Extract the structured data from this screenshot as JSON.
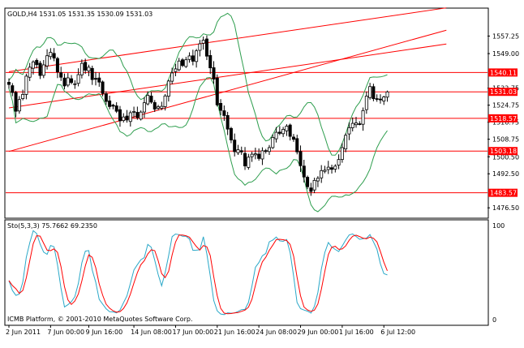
{
  "chart_data": [
    {
      "type": "candlestick",
      "title": "GOLD,H4  1531.05 1531.35 1530.09 1531.03",
      "symbol": "GOLD",
      "timeframe": "H4",
      "last_bar": {
        "open": 1531.05,
        "high": 1531.35,
        "low": 1530.09,
        "close": 1531.03
      },
      "ylim": [
        1472,
        1570
      ],
      "y_ticks": [
        1557.25,
        1549.0,
        1532.75,
        1524.75,
        1516.75,
        1508.75,
        1500.5,
        1492.5,
        1476.5
      ],
      "price_tags": [
        {
          "label": "1540.11",
          "value": 1540.11
        },
        {
          "label": "1531.03",
          "value": 1531.03
        },
        {
          "label": "1518.57",
          "value": 1518.57
        },
        {
          "label": "1503.18",
          "value": 1503.18
        },
        {
          "label": "1483.57",
          "value": 1483.57
        }
      ],
      "horizontal_lines": [
        1540.11,
        1531.03,
        1518.57,
        1503.18,
        1483.57
      ],
      "trend_lines": [
        {
          "name": "channel-top",
          "from": [
            0,
            1540.5
          ],
          "to": [
            126,
            1570.5
          ]
        },
        {
          "name": "channel-base",
          "from": [
            0,
            1523.5
          ],
          "to": [
            126,
            1553.5
          ]
        },
        {
          "name": "lower-trend",
          "from": [
            0,
            1503.0
          ],
          "to": [
            126,
            1560.0
          ]
        }
      ],
      "closes": [
        1534.5,
        1530.7,
        1521.9,
        1527.4,
        1529.8,
        1538.4,
        1542.6,
        1545.1,
        1543.8,
        1538.7,
        1543.7,
        1548.0,
        1549.6,
        1546.9,
        1540.4,
        1537.9,
        1533.8,
        1537.6,
        1535.4,
        1534.8,
        1539.1,
        1544.4,
        1541.2,
        1542.6,
        1536.8,
        1537.0,
        1535.6,
        1530.3,
        1526.5,
        1524.1,
        1524.3,
        1521.9,
        1517.4,
        1519.2,
        1517.8,
        1521.2,
        1521.8,
        1518.9,
        1521.5,
        1525.9,
        1529.4,
        1526.2,
        1522.9,
        1524.0,
        1524.2,
        1529.1,
        1536.1,
        1539.9,
        1541.8,
        1545.5,
        1543.4,
        1546.1,
        1547.9,
        1545.4,
        1550.3,
        1553.6,
        1555.3,
        1547.8,
        1542.3,
        1537.0,
        1524.9,
        1522.3,
        1519.9,
        1513.5,
        1508.4,
        1502.9,
        1503.8,
        1502.8,
        1496.2,
        1500.3,
        1501.7,
        1501.9,
        1499.7,
        1503.3,
        1503.0,
        1504.8,
        1509.6,
        1512.0,
        1511.5,
        1513.4,
        1514.9,
        1510.1,
        1508.7,
        1502.8,
        1496.3,
        1491.0,
        1486.4,
        1484.2,
        1489.4,
        1490.4,
        1494.0,
        1494.2,
        1495.6,
        1494.6,
        1496.1,
        1499.2,
        1504.8,
        1510.6,
        1514.2,
        1516.2,
        1516.4,
        1516.0,
        1522.2,
        1529.0,
        1533.5,
        1527.8,
        1527.5,
        1527.3,
        1528.6,
        1531.0
      ],
      "x_tick_labels": [
        "2 Jun 2011",
        "7 Jun 00:00",
        "9 Jun 16:00",
        "14 Jun 08:00",
        "17 Jun 00:00",
        "21 Jun 16:00",
        "24 Jun 08:00",
        "29 Jun 00:00",
        "1 Jul 16:00",
        "6 Jul 12:00"
      ],
      "x_tick_bars": [
        0,
        12,
        23,
        36,
        48,
        60,
        72,
        84,
        96,
        108
      ],
      "indicator_lines": [
        "upper-band",
        "lower-band"
      ],
      "annotation": "ICMB Platform, © 2001-2010 MetaQuotes Software Corp.",
      "colors": {
        "candle": "#000000",
        "level": "#ff0000",
        "band": "#2e9e4e",
        "tag_bg": "#ff0000",
        "axis": "#000000"
      }
    },
    {
      "type": "line",
      "title": "Sto(5,3,3) 75.7662 69.2350",
      "ylim": [
        0,
        100
      ],
      "y_ticks": [
        100,
        0
      ],
      "series": [
        {
          "name": "main",
          "color": "#2aa8c8",
          "last": 75.7662
        },
        {
          "name": "signal",
          "color": "#ff0000",
          "last": 69.235
        }
      ]
    }
  ]
}
